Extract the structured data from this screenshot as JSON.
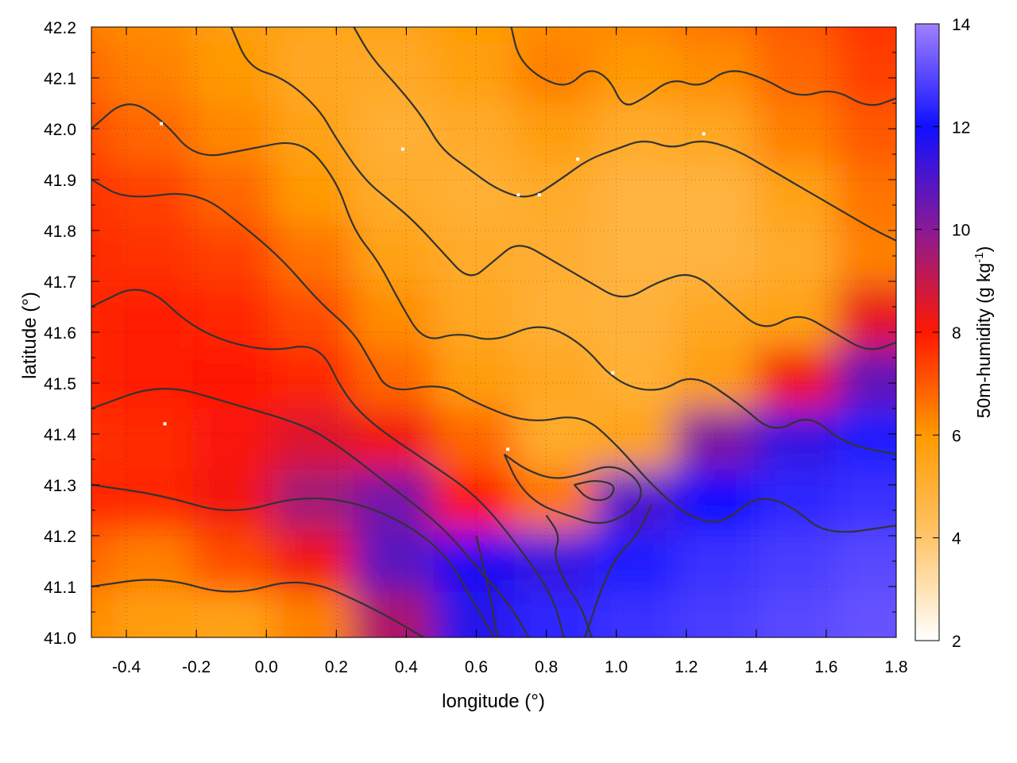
{
  "chart_data": {
    "type": "heatmap",
    "title": "",
    "xlabel": "longitude (°)",
    "ylabel": "latitude (°)",
    "xlim": [
      -0.5,
      1.8
    ],
    "ylim": [
      41.0,
      42.2
    ],
    "x_ticks": [
      "-0.4",
      "-0.2",
      "0.0",
      "0.2",
      "0.4",
      "0.6",
      "0.8",
      "1.0",
      "1.2",
      "1.4",
      "1.6",
      "1.8"
    ],
    "x_tick_values": [
      -0.4,
      -0.2,
      0.0,
      0.2,
      0.4,
      0.6,
      0.8,
      1.0,
      1.2,
      1.4,
      1.6,
      1.8
    ],
    "y_ticks": [
      "41.0",
      "41.1",
      "41.2",
      "41.3",
      "41.4",
      "41.5",
      "41.6",
      "41.7",
      "41.8",
      "41.9",
      "42.0",
      "42.1",
      "42.2"
    ],
    "y_tick_values": [
      41.0,
      41.1,
      41.2,
      41.3,
      41.4,
      41.5,
      41.6,
      41.7,
      41.8,
      41.9,
      42.0,
      42.1,
      42.2
    ],
    "grid": true,
    "colorbar": {
      "label_main": "50m-humidity (g kg",
      "label_sup": "-1",
      "label_end": ")",
      "min": 2,
      "max": 14,
      "ticks": [
        "2",
        "4",
        "6",
        "8",
        "10",
        "12",
        "14"
      ],
      "tick_values": [
        2,
        4,
        6,
        8,
        10,
        12,
        14
      ],
      "color_stops": [
        {
          "value": 2,
          "color": "#ffffff"
        },
        {
          "value": 4,
          "color": "#ffc56a"
        },
        {
          "value": 6,
          "color": "#ff9a00"
        },
        {
          "value": 8,
          "color": "#ff1800"
        },
        {
          "value": 10,
          "color": "#8a1a96"
        },
        {
          "value": 12,
          "color": "#1010ff"
        },
        {
          "value": 14,
          "color": "#a080ff"
        }
      ]
    },
    "humidity_grid": {
      "lon": [
        -0.5,
        -0.27,
        -0.04,
        0.19,
        0.42,
        0.65,
        0.88,
        1.11,
        1.34,
        1.57,
        1.8
      ],
      "lat": [
        42.2,
        42.08,
        41.96,
        41.84,
        41.72,
        41.6,
        41.48,
        41.36,
        41.24,
        41.12,
        41.0
      ],
      "values": [
        [
          6.4,
          6.2,
          5.8,
          5.5,
          5.6,
          5.9,
          6.2,
          6.3,
          6.6,
          7.0,
          7.6
        ],
        [
          6.8,
          6.4,
          6.0,
          5.4,
          5.3,
          5.7,
          6.4,
          6.0,
          6.2,
          6.8,
          7.4
        ],
        [
          7.2,
          6.8,
          6.3,
          5.6,
          5.0,
          5.2,
          5.8,
          5.2,
          5.4,
          6.4,
          7.0
        ],
        [
          7.6,
          7.4,
          6.8,
          6.0,
          5.2,
          5.0,
          5.2,
          4.8,
          4.8,
          5.6,
          6.6
        ],
        [
          7.7,
          7.6,
          7.4,
          6.6,
          5.6,
          5.2,
          5.1,
          4.8,
          4.8,
          5.2,
          6.4
        ],
        [
          7.8,
          7.9,
          7.8,
          7.2,
          6.2,
          5.4,
          5.0,
          4.9,
          5.4,
          5.6,
          8.4
        ],
        [
          7.8,
          7.9,
          8.0,
          7.8,
          6.8,
          5.8,
          5.4,
          5.0,
          5.8,
          8.2,
          10.6
        ],
        [
          7.6,
          7.7,
          8.1,
          8.6,
          8.2,
          6.8,
          5.2,
          5.6,
          10.2,
          11.4,
          12.2
        ],
        [
          7.8,
          7.8,
          8.2,
          9.6,
          10.4,
          8.0,
          6.6,
          11.0,
          12.0,
          12.4,
          12.6
        ],
        [
          6.8,
          6.4,
          7.2,
          8.2,
          10.8,
          11.8,
          11.4,
          12.2,
          12.6,
          12.8,
          13.0
        ],
        [
          6.2,
          5.8,
          5.6,
          6.4,
          9.4,
          11.6,
          12.4,
          12.6,
          12.8,
          13.0,
          13.2
        ]
      ]
    },
    "contour_lines": [
      {
        "name": "contour-1",
        "points": [
          [
            -0.5,
            41.1
          ],
          [
            -0.3,
            41.12
          ],
          [
            -0.1,
            41.08
          ],
          [
            0.1,
            41.12
          ],
          [
            0.3,
            41.06
          ],
          [
            0.45,
            41.0
          ]
        ]
      },
      {
        "name": "contour-2",
        "points": [
          [
            -0.5,
            41.3
          ],
          [
            -0.3,
            41.28
          ],
          [
            -0.1,
            41.24
          ],
          [
            0.1,
            41.28
          ],
          [
            0.3,
            41.26
          ],
          [
            0.5,
            41.18
          ],
          [
            0.6,
            41.06
          ],
          [
            0.65,
            41.0
          ]
        ]
      },
      {
        "name": "contour-3",
        "points": [
          [
            -0.5,
            41.45
          ],
          [
            -0.3,
            41.5
          ],
          [
            -0.1,
            41.46
          ],
          [
            0.1,
            41.42
          ],
          [
            0.2,
            41.38
          ],
          [
            0.35,
            41.3
          ],
          [
            0.5,
            41.22
          ],
          [
            0.6,
            41.14
          ],
          [
            0.7,
            41.06
          ],
          [
            0.75,
            41.0
          ]
        ]
      },
      {
        "name": "contour-4",
        "points": [
          [
            -0.5,
            41.65
          ],
          [
            -0.35,
            41.7
          ],
          [
            -0.2,
            41.6
          ],
          [
            0.0,
            41.56
          ],
          [
            0.15,
            41.58
          ],
          [
            0.22,
            41.48
          ],
          [
            0.3,
            41.42
          ],
          [
            0.45,
            41.35
          ],
          [
            0.6,
            41.28
          ],
          [
            0.72,
            41.18
          ],
          [
            0.82,
            41.08
          ],
          [
            0.85,
            41.0
          ]
        ]
      },
      {
        "name": "contour-5",
        "points": [
          [
            -0.5,
            41.9
          ],
          [
            -0.4,
            41.86
          ],
          [
            -0.2,
            41.88
          ],
          [
            -0.05,
            41.8
          ],
          [
            0.05,
            41.74
          ],
          [
            0.15,
            41.66
          ],
          [
            0.25,
            41.6
          ],
          [
            0.3,
            41.54
          ],
          [
            0.35,
            41.48
          ],
          [
            0.5,
            41.5
          ],
          [
            0.6,
            41.46
          ],
          [
            0.75,
            41.42
          ],
          [
            0.9,
            41.44
          ],
          [
            1.0,
            41.38
          ],
          [
            1.1,
            41.3
          ],
          [
            1.2,
            41.24
          ],
          [
            1.3,
            41.22
          ],
          [
            1.4,
            41.28
          ],
          [
            1.5,
            41.26
          ],
          [
            1.6,
            41.2
          ],
          [
            1.8,
            41.22
          ]
        ]
      },
      {
        "name": "contour-6",
        "points": [
          [
            -0.5,
            42.0
          ],
          [
            -0.4,
            42.06
          ],
          [
            -0.3,
            42.02
          ],
          [
            -0.2,
            41.94
          ],
          [
            -0.05,
            41.96
          ],
          [
            0.1,
            41.98
          ],
          [
            0.2,
            41.9
          ],
          [
            0.25,
            41.8
          ],
          [
            0.32,
            41.74
          ],
          [
            0.38,
            41.66
          ],
          [
            0.45,
            41.58
          ],
          [
            0.55,
            41.6
          ],
          [
            0.65,
            41.58
          ],
          [
            0.78,
            41.62
          ],
          [
            0.9,
            41.58
          ],
          [
            1.0,
            41.5
          ],
          [
            1.12,
            41.48
          ],
          [
            1.22,
            41.52
          ],
          [
            1.35,
            41.46
          ],
          [
            1.45,
            41.4
          ],
          [
            1.55,
            41.44
          ],
          [
            1.65,
            41.38
          ],
          [
            1.8,
            41.36
          ]
        ]
      },
      {
        "name": "contour-7",
        "points": [
          [
            -0.1,
            42.2
          ],
          [
            -0.05,
            42.12
          ],
          [
            0.05,
            42.1
          ],
          [
            0.15,
            42.04
          ],
          [
            0.2,
            41.98
          ],
          [
            0.28,
            41.9
          ],
          [
            0.35,
            41.86
          ],
          [
            0.42,
            41.82
          ],
          [
            0.5,
            41.76
          ],
          [
            0.58,
            41.7
          ],
          [
            0.65,
            41.74
          ],
          [
            0.72,
            41.78
          ],
          [
            0.82,
            41.74
          ],
          [
            0.92,
            41.7
          ],
          [
            1.02,
            41.66
          ],
          [
            1.12,
            41.7
          ],
          [
            1.22,
            41.72
          ],
          [
            1.32,
            41.66
          ],
          [
            1.42,
            41.6
          ],
          [
            1.52,
            41.64
          ],
          [
            1.62,
            41.6
          ],
          [
            1.72,
            41.56
          ],
          [
            1.8,
            41.58
          ]
        ]
      },
      {
        "name": "contour-8",
        "points": [
          [
            0.25,
            42.2
          ],
          [
            0.3,
            42.14
          ],
          [
            0.38,
            42.08
          ],
          [
            0.45,
            42.02
          ],
          [
            0.5,
            41.96
          ],
          [
            0.58,
            41.92
          ],
          [
            0.66,
            41.88
          ],
          [
            0.75,
            41.86
          ],
          [
            0.84,
            41.9
          ],
          [
            0.92,
            41.94
          ],
          [
            1.0,
            41.96
          ],
          [
            1.08,
            41.98
          ],
          [
            1.16,
            41.96
          ],
          [
            1.24,
            41.98
          ],
          [
            1.34,
            41.96
          ],
          [
            1.44,
            41.92
          ],
          [
            1.54,
            41.88
          ],
          [
            1.64,
            41.84
          ],
          [
            1.74,
            41.8
          ],
          [
            1.8,
            41.78
          ]
        ]
      },
      {
        "name": "contour-9",
        "points": [
          [
            0.7,
            42.2
          ],
          [
            0.72,
            42.14
          ],
          [
            0.78,
            42.1
          ],
          [
            0.86,
            42.08
          ],
          [
            0.92,
            42.12
          ],
          [
            0.98,
            42.1
          ],
          [
            1.02,
            42.04
          ],
          [
            1.08,
            42.06
          ],
          [
            1.16,
            42.1
          ],
          [
            1.24,
            42.08
          ],
          [
            1.32,
            42.12
          ],
          [
            1.42,
            42.1
          ],
          [
            1.52,
            42.06
          ],
          [
            1.62,
            42.08
          ],
          [
            1.72,
            42.04
          ],
          [
            1.8,
            42.06
          ]
        ]
      },
      {
        "name": "contour-10",
        "points": [
          [
            0.68,
            41.36
          ],
          [
            0.74,
            41.33
          ],
          [
            0.82,
            41.31
          ],
          [
            0.9,
            41.32
          ],
          [
            0.98,
            41.34
          ],
          [
            1.05,
            41.32
          ],
          [
            1.08,
            41.28
          ],
          [
            1.03,
            41.24
          ],
          [
            0.95,
            41.22
          ],
          [
            0.86,
            41.24
          ],
          [
            0.78,
            41.26
          ],
          [
            0.72,
            41.3
          ],
          [
            0.68,
            41.36
          ]
        ]
      },
      {
        "name": "contour-11",
        "points": [
          [
            0.88,
            41.3
          ],
          [
            0.94,
            41.31
          ],
          [
            1.0,
            41.3
          ],
          [
            0.98,
            41.27
          ],
          [
            0.92,
            41.27
          ],
          [
            0.88,
            41.3
          ]
        ]
      },
      {
        "name": "contour-12",
        "points": [
          [
            0.8,
            41.24
          ],
          [
            0.84,
            41.2
          ],
          [
            0.82,
            41.16
          ],
          [
            0.86,
            41.1
          ],
          [
            0.9,
            41.06
          ],
          [
            0.93,
            41.0
          ]
        ]
      },
      {
        "name": "contour-13",
        "points": [
          [
            1.1,
            41.26
          ],
          [
            1.06,
            41.2
          ],
          [
            1.0,
            41.16
          ],
          [
            0.96,
            41.1
          ],
          [
            0.93,
            41.04
          ],
          [
            0.91,
            41.0
          ]
        ]
      },
      {
        "name": "contour-14",
        "points": [
          [
            0.6,
            41.2
          ],
          [
            0.62,
            41.14
          ],
          [
            0.64,
            41.08
          ],
          [
            0.66,
            41.0
          ]
        ]
      }
    ],
    "station_markers": [
      {
        "lon": -0.3,
        "lat": 42.01
      },
      {
        "lon": 0.39,
        "lat": 41.96
      },
      {
        "lon": 0.89,
        "lat": 41.94
      },
      {
        "lon": 1.25,
        "lat": 41.99
      },
      {
        "lon": 0.72,
        "lat": 41.87
      },
      {
        "lon": 0.78,
        "lat": 41.87
      },
      {
        "lon": 0.99,
        "lat": 41.52
      },
      {
        "lon": -0.29,
        "lat": 41.42
      },
      {
        "lon": 0.69,
        "lat": 41.37
      }
    ]
  }
}
